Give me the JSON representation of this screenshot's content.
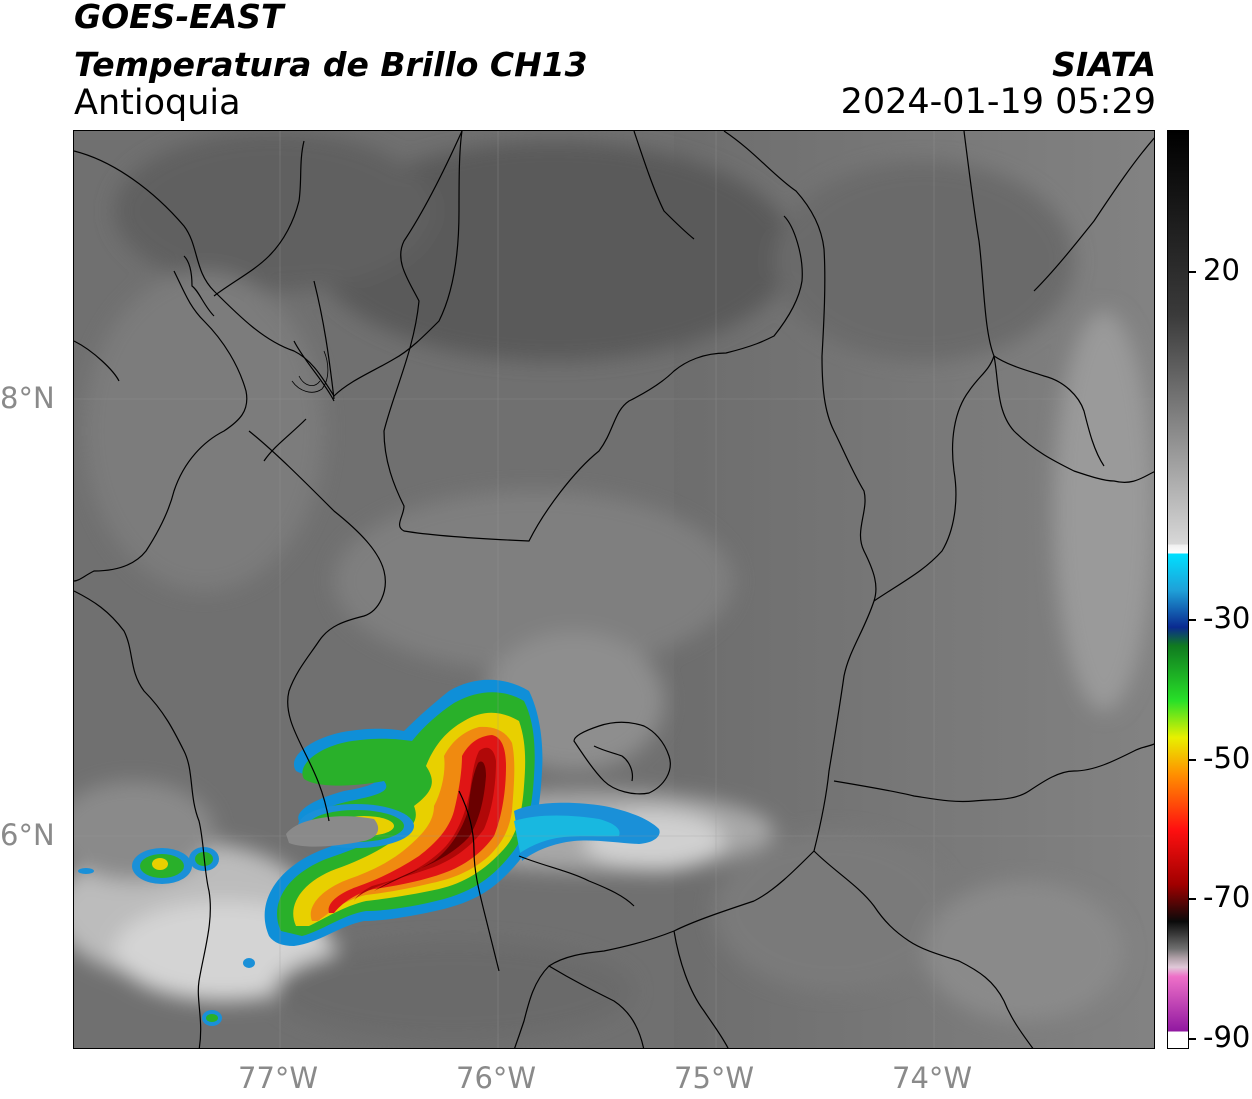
{
  "header": {
    "satellite": "GOES-EAST",
    "product": "Temperatura de Brillo CH13",
    "region": "Antioquia",
    "agency": "SIATA",
    "datetime": "2024-01-19 05:29"
  },
  "axes": {
    "lat_labels": [
      "8°N",
      "6°N"
    ],
    "lon_labels": [
      "77°W",
      "76°W",
      "75°W",
      "74°W"
    ]
  },
  "colorbar": {
    "tick_labels": [
      "20",
      "-30",
      "-50",
      "-70",
      "-90"
    ]
  },
  "colors": {
    "land_gray": "#6e6e6e",
    "cloud_light": "#d6d6d6",
    "storm_red": "#e01010",
    "storm_darkred": "#7a0000",
    "storm_yellow": "#f0d000",
    "storm_green": "#22b020",
    "storm_blue": "#1a8fd0",
    "storm_cyan": "#00d8f0"
  }
}
